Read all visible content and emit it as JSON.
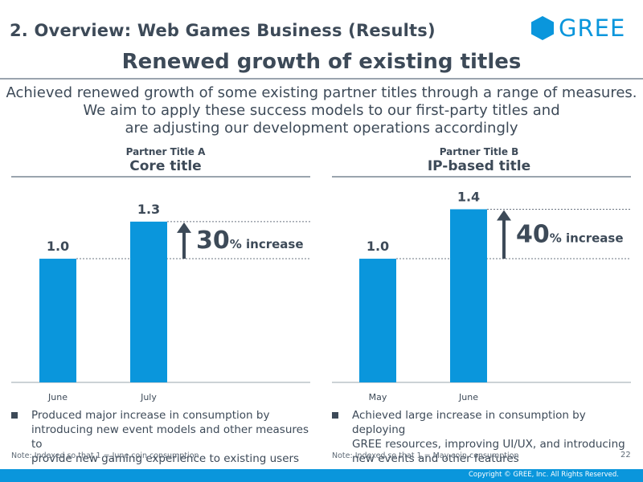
{
  "header": {
    "title": "2. Overview: Web Games Business (Results)"
  },
  "logo": {
    "text": "GREE",
    "icon": "gree-hexagon-icon",
    "color": "#0a96dc"
  },
  "main": {
    "title": "Renewed growth of existing titles",
    "summary_lines": [
      "Achieved renewed growth of some existing partner titles through a range of measures.",
      "We aim to apply these success models to our first-party titles and",
      "are adjusting our development operations accordingly"
    ]
  },
  "colors": {
    "bar": "#0a96dc",
    "arrow": "#3d4a58",
    "text": "#3d4a58"
  },
  "chart_data": [
    {
      "type": "bar",
      "subtitle": "Partner Title A",
      "title": "Core title",
      "categories": [
        "June",
        "July"
      ],
      "values": [
        1.0,
        1.3
      ],
      "value_labels": [
        "1.0",
        "1.3"
      ],
      "annotation": {
        "number": "30",
        "text": "% increase"
      },
      "ylim": [
        0,
        1.65
      ],
      "note": "Note: Indexed so that 1 = June coin consumption",
      "bullet": [
        "Produced major increase in consumption by",
        "introducing new event models and other measures to",
        "provide new gaming experience to existing users"
      ]
    },
    {
      "type": "bar",
      "subtitle": "Partner Title B",
      "title": "IP-based title",
      "categories": [
        "May",
        "June"
      ],
      "values": [
        1.0,
        1.4
      ],
      "value_labels": [
        "1.0",
        "1.4"
      ],
      "annotation": {
        "number": "40",
        "text": "% increase"
      },
      "ylim": [
        0,
        1.65
      ],
      "note": "Note: Indexed so that 1 = May coin consumption",
      "bullet": [
        "Achieved large increase in consumption by deploying",
        "GREE resources,  improving UI/UX, and introducing",
        "new events and other features"
      ]
    }
  ],
  "footer": {
    "page": "22",
    "copyright": "Copyright © GREE, Inc. All Rights Reserved."
  }
}
